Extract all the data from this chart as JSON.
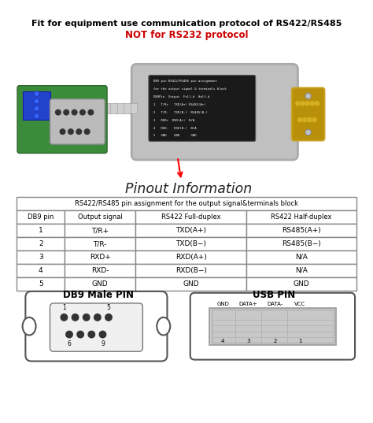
{
  "title_line1": "Fit for equipment use communication protocol of RS422/RS485",
  "title_line2": "NOT for RS232 protocol",
  "pinout_label": "●Pinout Information",
  "table_title": "RS422/RS485 pin assignment for the output signal&terminals block",
  "table_headers": [
    "DB9 pin",
    "Output signal",
    "RS422 Full-duplex",
    "RS422 Half-duplex"
  ],
  "table_rows": [
    [
      "1",
      "T/R+",
      "TXD(A+)",
      "RS485(A+)"
    ],
    [
      "2",
      "T/R-",
      "TXD(B−)",
      "RS485(B−)"
    ],
    [
      "3",
      "RXD+",
      "RXD(A+)",
      "N/A"
    ],
    [
      "4",
      "RXD-",
      "RXD(B−)",
      "N/A"
    ],
    [
      "5",
      "GND",
      "GND",
      "GND"
    ]
  ],
  "db9_label": "DB9 Male PIN",
  "usb_label": "USB PIN",
  "usb_pin_labels": [
    "GND",
    "DATA+",
    "DATA-",
    "VCC"
  ],
  "usb_pin_numbers": [
    "4",
    "3",
    "2",
    "1"
  ],
  "bg_color": "#ffffff",
  "title1_color": "#000000",
  "title2_color": "#cc0000",
  "table_border_color": "#888888",
  "pinout_color": "#222222"
}
